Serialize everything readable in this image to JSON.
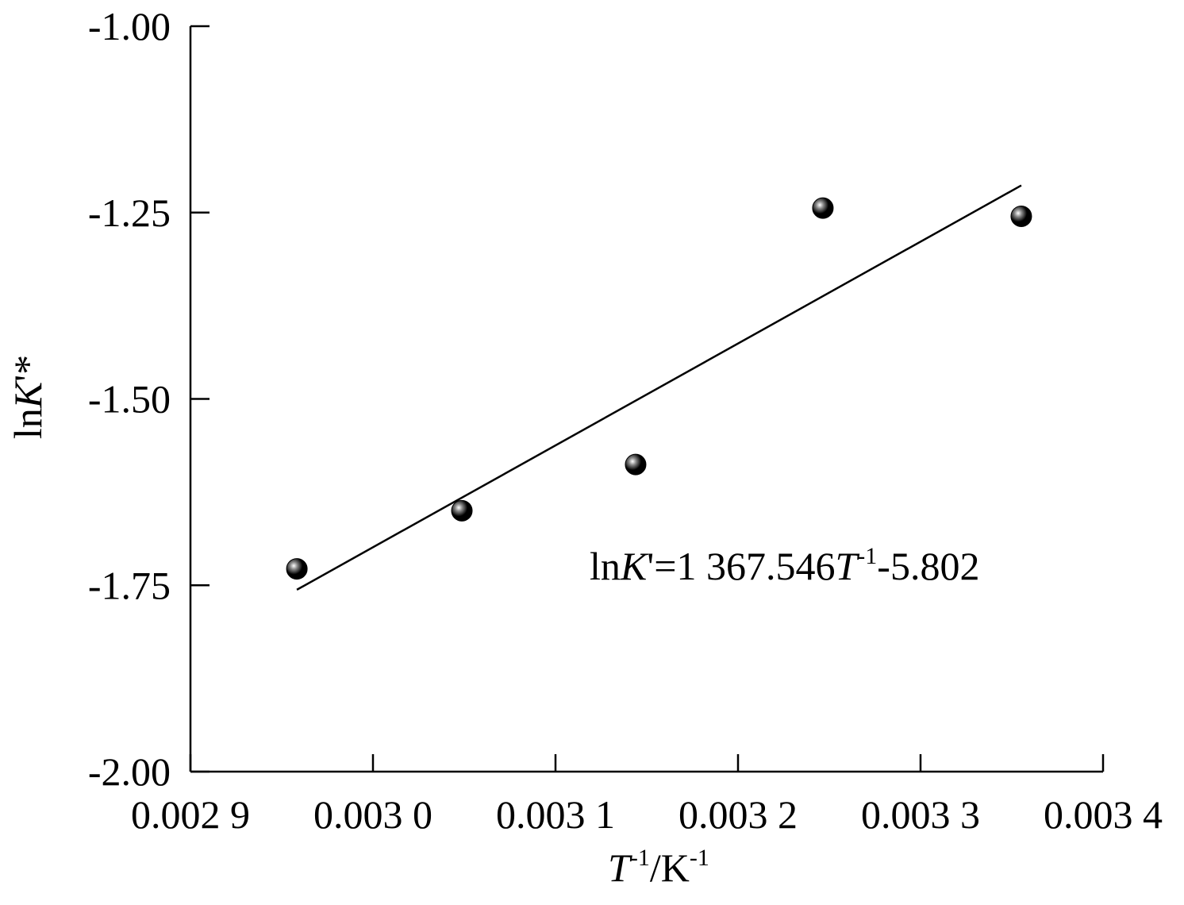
{
  "chart_data": {
    "type": "scatter",
    "x": [
      0.0029583,
      0.0030487,
      0.0031439,
      0.0032465,
      0.0033552
    ],
    "values": [
      -1.728,
      -1.65,
      -1.588,
      -1.244,
      -1.255
    ],
    "color": "#000000",
    "fit_line": {
      "x": [
        0.0029583,
        0.0033552
      ],
      "values": [
        -1.756,
        -1.2136
      ],
      "color": "#000000"
    },
    "x_label": [
      "T",
      "-1",
      "/K",
      "-1"
    ],
    "y_label": [
      "ln",
      "K",
      "'*"
    ],
    "annotation": [
      "ln",
      "K",
      "'=1 367.546",
      "T",
      "-1",
      "-5.802"
    ],
    "xlim": [
      0.0029,
      0.0034
    ],
    "xticks": [
      {
        "value": 0.0029,
        "label": "0.002 9"
      },
      {
        "value": 0.003,
        "label": "0.003 0"
      },
      {
        "value": 0.0031,
        "label": "0.003 1"
      },
      {
        "value": 0.0032,
        "label": "0.003 2"
      },
      {
        "value": 0.0033,
        "label": "0.003 3"
      },
      {
        "value": 0.0034,
        "label": "0.003 4"
      }
    ],
    "ylim": [
      -2,
      -1
    ],
    "yticks": [
      {
        "value": -2,
        "label": "-2.00"
      },
      {
        "value": -1.75,
        "label": "-1.75"
      },
      {
        "value": -1.5,
        "label": "-1.50"
      },
      {
        "value": -1.25,
        "label": "-1.25"
      },
      {
        "value": -1,
        "label": "-1.00"
      }
    ]
  }
}
